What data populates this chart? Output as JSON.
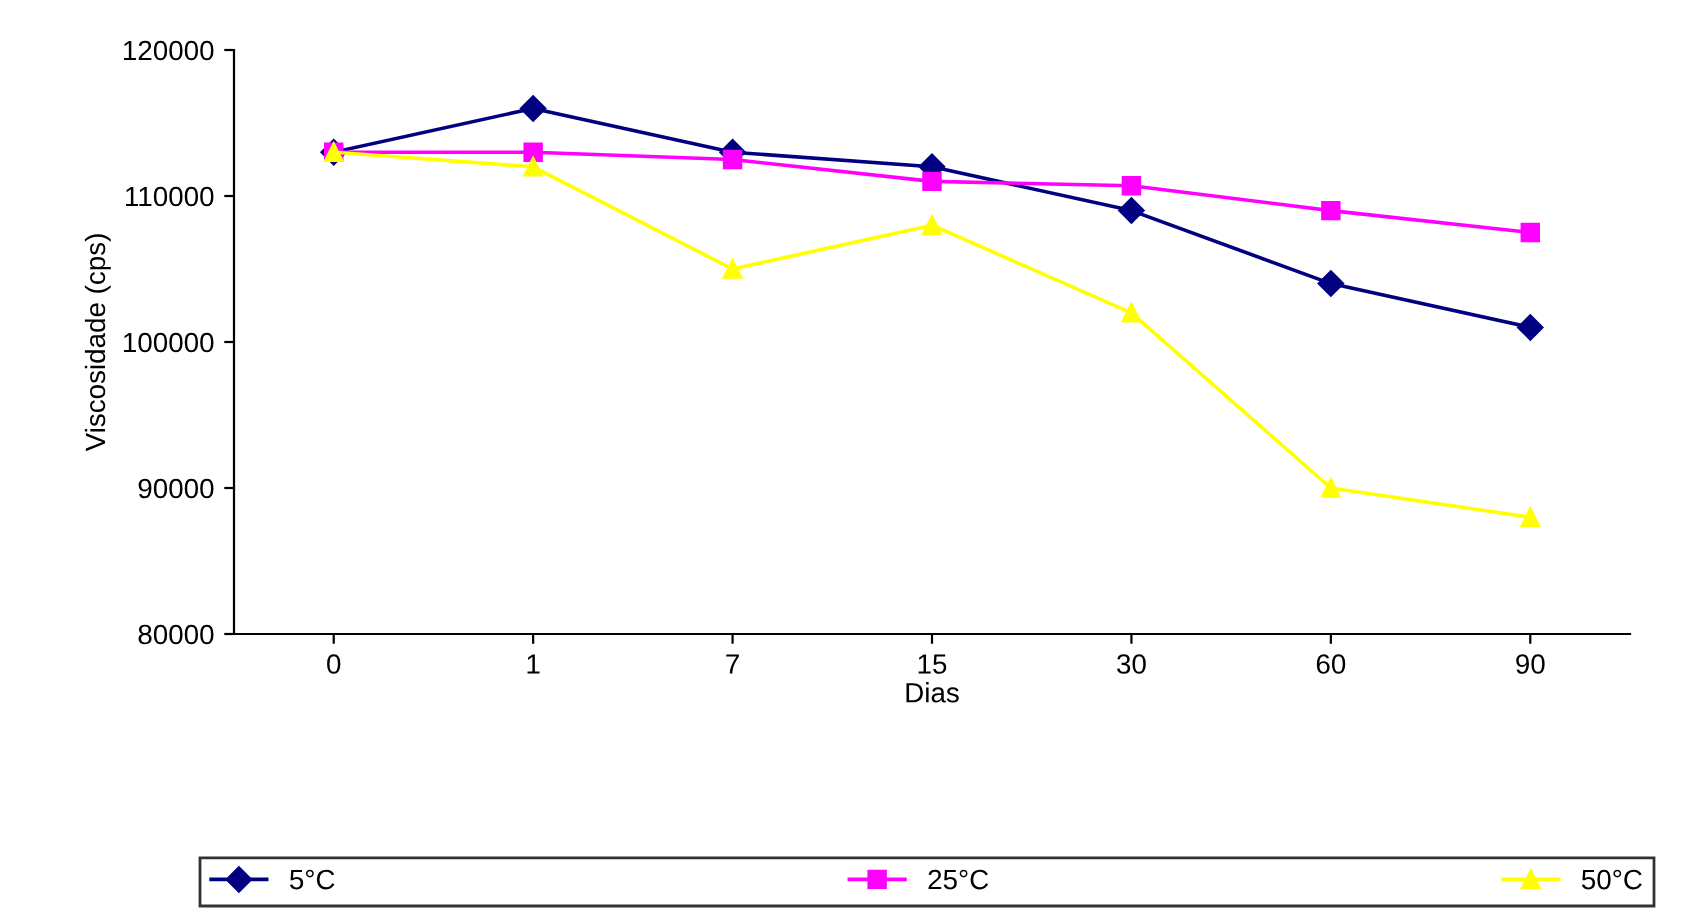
{
  "chart_data": {
    "type": "line",
    "xlabel": "Dias",
    "ylabel": "Viscosidade (cps)",
    "categories": [
      "0",
      "1",
      "7",
      "15",
      "30",
      "60",
      "90"
    ],
    "series": [
      {
        "name": "5°C",
        "color": "#000080",
        "marker": "diamond",
        "values": [
          113000,
          116000,
          113000,
          112000,
          109000,
          104000,
          101000
        ]
      },
      {
        "name": "25°C",
        "color": "#ff00ff",
        "marker": "square",
        "values": [
          113000,
          113000,
          112500,
          111000,
          110700,
          109000,
          107500
        ]
      },
      {
        "name": "50°C",
        "color": "#ffff00",
        "marker": "triangle",
        "values": [
          113000,
          112000,
          105000,
          108000,
          102000,
          90000,
          88000
        ]
      }
    ],
    "ylim": [
      80000,
      120000
    ],
    "yticks": [
      80000,
      90000,
      100000,
      110000,
      120000
    ],
    "grid": false,
    "legend": "bottom",
    "line_style": "solid"
  }
}
